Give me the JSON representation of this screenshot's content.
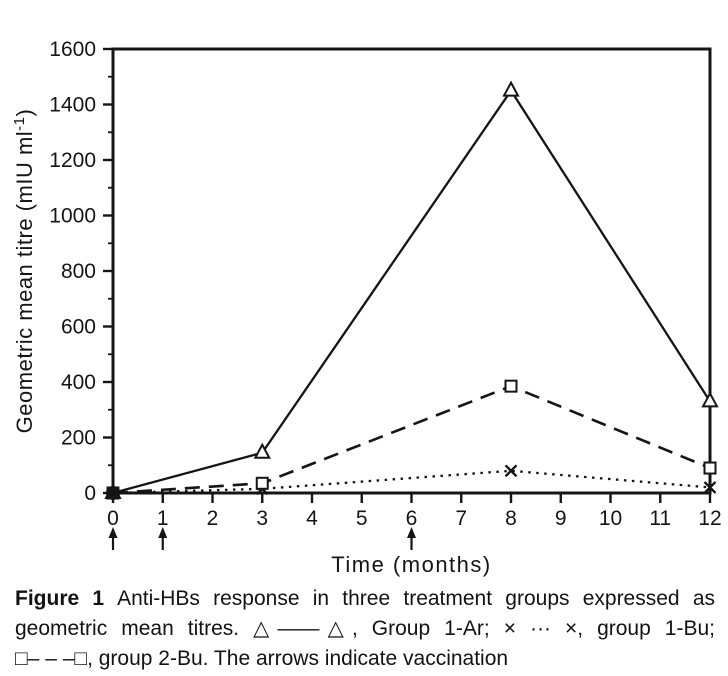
{
  "caption": {
    "label": "Figure 1",
    "line1": "Anti-HBs response in three treatment groups expressed as",
    "line2": "geometric mean titres. △——△, Group 1-Ar; × ··· ×, group 1-Bu;",
    "line3": "□– – –□, group 2-Bu. The arrows indicate vaccination"
  },
  "chart_data": {
    "type": "line",
    "title": "",
    "xlabel": "Time (months)",
    "ylabel": "Geometric mean titre (mIU ml⁻¹)",
    "ylabel_main": "Geometric mean titre (mIU ml",
    "ylabel_sup": "-1",
    "ylabel_end": ")",
    "xlim": [
      0,
      12
    ],
    "ylim": [
      0,
      1600
    ],
    "x_ticks": [
      0,
      1,
      2,
      3,
      4,
      5,
      6,
      7,
      8,
      9,
      10,
      11,
      12
    ],
    "y_ticks": [
      0,
      200,
      400,
      600,
      800,
      1000,
      1200,
      1400,
      1600
    ],
    "y_minor_ticks": [
      100,
      300,
      500,
      700,
      900,
      1100,
      1300,
      1500
    ],
    "grid": false,
    "legend_position": "in caption",
    "vaccination_months": [
      0,
      1,
      6
    ],
    "x": [
      0,
      3,
      8,
      12
    ],
    "series": [
      {
        "name": "Group 1-Ar",
        "marker": "triangle",
        "line": "solid",
        "values": [
          0,
          145,
          1450,
          330
        ]
      },
      {
        "name": "group 1-Bu",
        "marker": "x",
        "line": "dotted",
        "values": [
          0,
          15,
          80,
          20
        ]
      },
      {
        "name": "group 2-Bu",
        "marker": "square",
        "line": "dashed",
        "values": [
          0,
          35,
          385,
          90
        ]
      }
    ],
    "origin_overlap_dot": true,
    "ink_color": "#151515",
    "background": "#ffffff"
  }
}
